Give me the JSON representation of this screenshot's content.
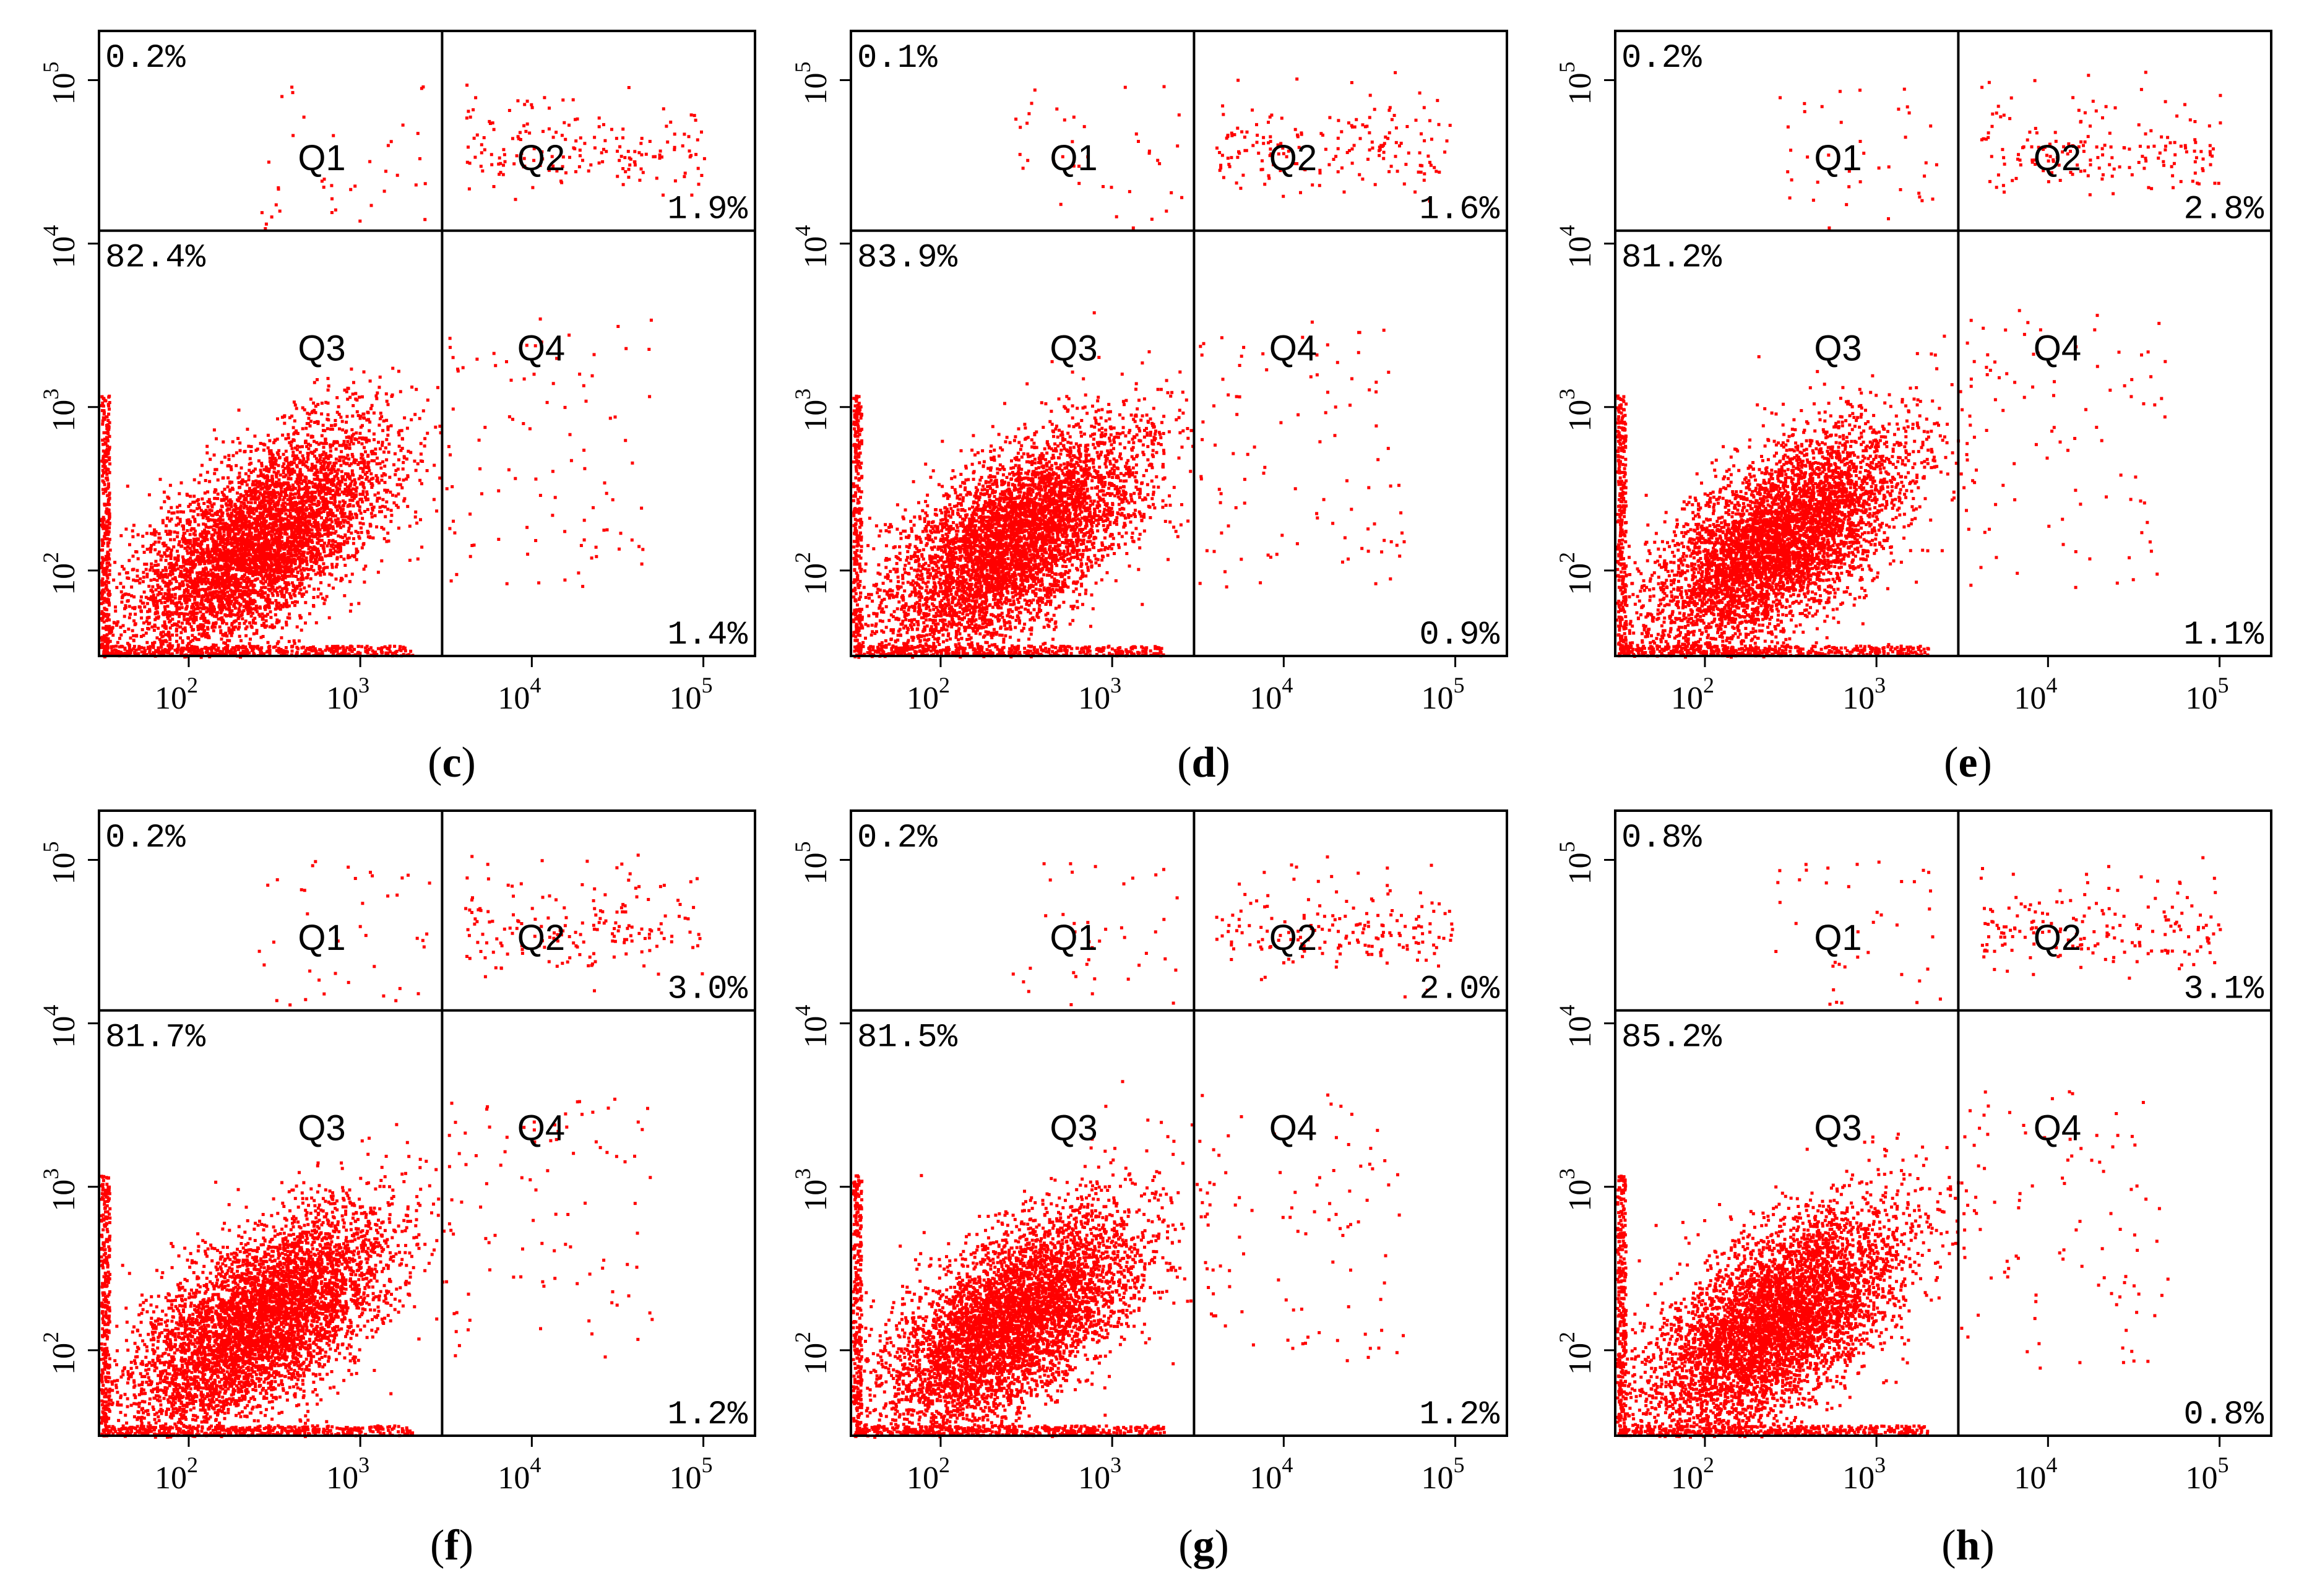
{
  "figure": {
    "panels": [
      {
        "label": "c",
        "quadrant_percent": {
          "Q1": "0.2%",
          "Q2": "1.9%",
          "Q3": "82.4%",
          "Q4": "1.4%"
        }
      },
      {
        "label": "d",
        "quadrant_percent": {
          "Q1": "0.1%",
          "Q2": "1.6%",
          "Q3": "83.9%",
          "Q4": "0.9%"
        }
      },
      {
        "label": "e",
        "quadrant_percent": {
          "Q1": "0.2%",
          "Q2": "2.8%",
          "Q3": "81.2%",
          "Q4": "1.1%"
        }
      },
      {
        "label": "f",
        "quadrant_percent": {
          "Q1": "0.2%",
          "Q2": "3.0%",
          "Q3": "81.7%",
          "Q4": "1.2%"
        }
      },
      {
        "label": "g",
        "quadrant_percent": {
          "Q1": "0.2%",
          "Q2": "2.0%",
          "Q3": "81.5%",
          "Q4": "1.2%"
        }
      },
      {
        "label": "h",
        "quadrant_percent": {
          "Q1": "0.8%",
          "Q2": "3.1%",
          "Q3": "85.2%",
          "Q4": "0.8%"
        }
      }
    ],
    "quadrant_names": [
      "Q1",
      "Q2",
      "Q3",
      "Q4"
    ],
    "point_color": "#ff0000",
    "line_color": "#000000"
  },
  "chart_data": {
    "type": "scatter",
    "x_scale": "log",
    "y_scale": "log",
    "xlim": [
      30,
      200000
    ],
    "ylim": [
      30,
      200000
    ],
    "x_ticks": [
      100,
      1000,
      10000,
      100000
    ],
    "y_ticks": [
      100,
      1000,
      10000,
      100000
    ],
    "x_tick_labels": [
      {
        "base": "10",
        "exp": "2"
      },
      {
        "base": "10",
        "exp": "3"
      },
      {
        "base": "10",
        "exp": "4"
      },
      {
        "base": "10",
        "exp": "5"
      }
    ],
    "y_tick_labels": [
      {
        "base": "10",
        "exp": "2"
      },
      {
        "base": "10",
        "exp": "3"
      },
      {
        "base": "10",
        "exp": "4"
      },
      {
        "base": "10",
        "exp": "5"
      }
    ],
    "quadrant_gate": {
      "x": 3000,
      "y": 12000
    },
    "grid": false,
    "main_population_center": {
      "x": 250,
      "y": 150
    }
  }
}
